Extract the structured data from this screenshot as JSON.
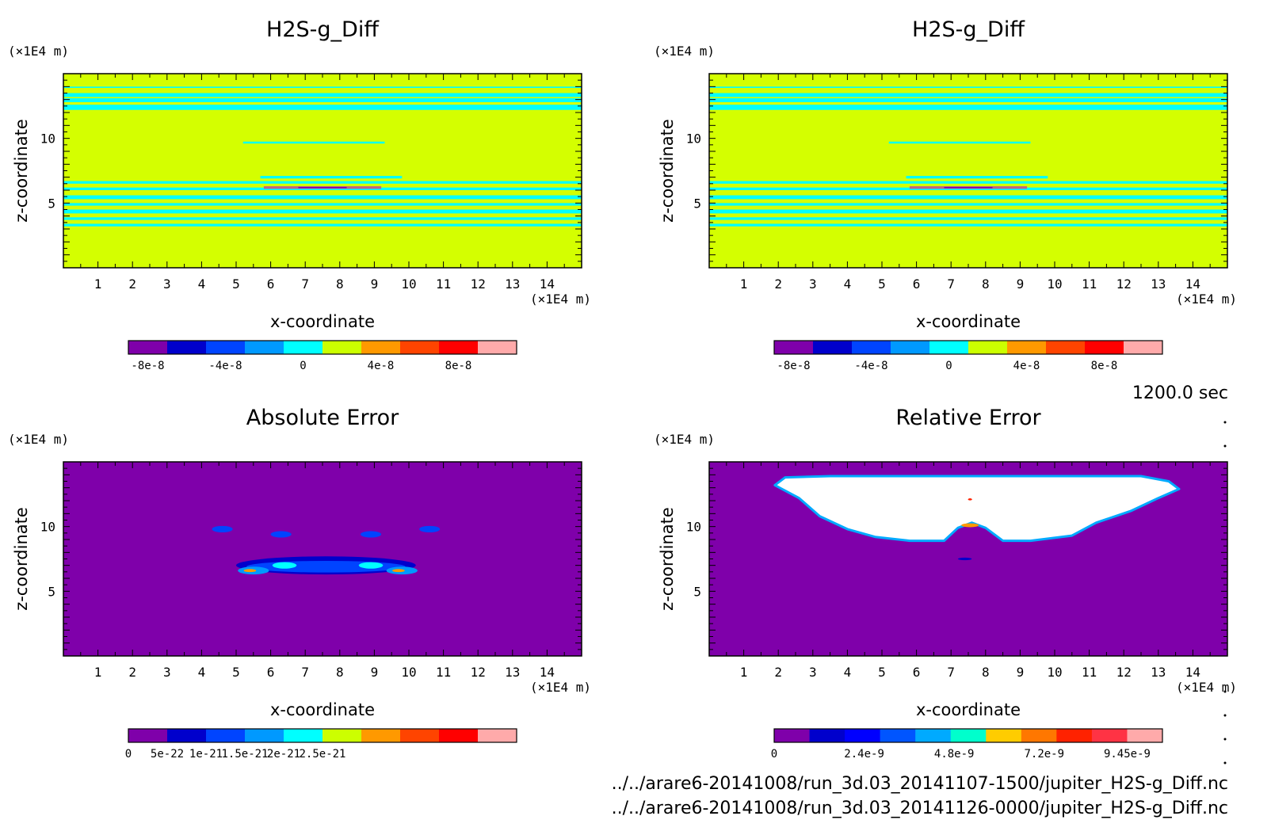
{
  "chart_data": [
    {
      "type": "heatmap",
      "title": "H2S-g_Diff",
      "xlabel": "x-coordinate",
      "ylabel": "z-coordinate",
      "x_unit": "(×1E4 m)",
      "y_unit": "(×1E4 m)",
      "xlim": [
        0,
        15
      ],
      "ylim": [
        0,
        15
      ],
      "x_ticks": [
        "1",
        "2",
        "3",
        "4",
        "5",
        "6",
        "7",
        "8",
        "9",
        "10",
        "11",
        "12",
        "13",
        "14"
      ],
      "y_ticks": [
        "5",
        "10"
      ],
      "background": "#d4ff00",
      "colorbar": {
        "colors": [
          "#7f00aa",
          "#0000cc",
          "#0044ff",
          "#0099ff",
          "#00ffff",
          "#ccff00",
          "#ff9900",
          "#ff4400",
          "#ff0000",
          "#ffaaaa"
        ],
        "labels": [
          "-8e-8",
          "-4e-8",
          "0",
          "4e-8",
          "8e-8"
        ],
        "label_at": [
          0.5,
          2.5,
          4.5,
          6.5,
          8.5
        ]
      },
      "features": [
        {
          "shape": "band",
          "z": [
            13.9,
            14.0
          ],
          "x": [
            0,
            15
          ],
          "color": "#00ffff"
        },
        {
          "shape": "band",
          "z": [
            13.2,
            13.5
          ],
          "x": [
            0,
            15
          ],
          "color": "#00ffff"
        },
        {
          "shape": "band",
          "z": [
            12.8,
            13.1
          ],
          "x": [
            0,
            15
          ],
          "color": "#00ffff"
        },
        {
          "shape": "band",
          "z": [
            12.2,
            12.6
          ],
          "x": [
            0,
            15
          ],
          "color": "#00ffff"
        },
        {
          "shape": "band",
          "z": [
            9.6,
            9.75
          ],
          "x": [
            5.2,
            9.3
          ],
          "color": "#00ffff"
        },
        {
          "shape": "band",
          "z": [
            6.9,
            7.1
          ],
          "x": [
            5.7,
            9.8
          ],
          "color": "#00ffff"
        },
        {
          "shape": "band",
          "z": [
            6.5,
            6.7
          ],
          "x": [
            0,
            15
          ],
          "color": "#00ffff"
        },
        {
          "shape": "band",
          "z": [
            6.0,
            6.2
          ],
          "x": [
            0,
            15
          ],
          "color": "#00ffff"
        },
        {
          "shape": "band",
          "z": [
            5.3,
            5.6
          ],
          "x": [
            0,
            15
          ],
          "color": "#00ffff"
        },
        {
          "shape": "band",
          "z": [
            4.8,
            5.0
          ],
          "x": [
            0,
            15
          ],
          "color": "#00ffff"
        },
        {
          "shape": "band",
          "z": [
            4.2,
            4.5
          ],
          "x": [
            0,
            15
          ],
          "color": "#00ffff"
        },
        {
          "shape": "band",
          "z": [
            3.7,
            3.9
          ],
          "x": [
            0,
            15
          ],
          "color": "#00ffff"
        },
        {
          "shape": "band",
          "z": [
            3.2,
            3.4
          ],
          "x": [
            0,
            15
          ],
          "color": "#00ffff"
        },
        {
          "shape": "band",
          "z": [
            6.1,
            6.3
          ],
          "x": [
            5.8,
            9.2
          ],
          "color": "#bb6688"
        },
        {
          "shape": "band",
          "z": [
            6.15,
            6.25
          ],
          "x": [
            6.8,
            8.2
          ],
          "color": "#7f00aa"
        }
      ]
    },
    {
      "type": "heatmap",
      "title": "H2S-g_Diff",
      "xlabel": "x-coordinate",
      "ylabel": "z-coordinate",
      "x_unit": "(×1E4 m)",
      "y_unit": "(×1E4 m)",
      "xlim": [
        0,
        15
      ],
      "ylim": [
        0,
        15
      ],
      "x_ticks": [
        "1",
        "2",
        "3",
        "4",
        "5",
        "6",
        "7",
        "8",
        "9",
        "10",
        "11",
        "12",
        "13",
        "14"
      ],
      "y_ticks": [
        "5",
        "10"
      ],
      "background": "#d4ff00",
      "colorbar": {
        "colors": [
          "#7f00aa",
          "#0000cc",
          "#0044ff",
          "#0099ff",
          "#00ffff",
          "#ccff00",
          "#ff9900",
          "#ff4400",
          "#ff0000",
          "#ffaaaa"
        ],
        "labels": [
          "-8e-8",
          "-4e-8",
          "0",
          "4e-8",
          "8e-8"
        ],
        "label_at": [
          0.5,
          2.5,
          4.5,
          6.5,
          8.5
        ]
      },
      "features": [
        {
          "shape": "band",
          "z": [
            13.9,
            14.0
          ],
          "x": [
            0,
            15
          ],
          "color": "#00ffff"
        },
        {
          "shape": "band",
          "z": [
            13.2,
            13.5
          ],
          "x": [
            0,
            15
          ],
          "color": "#00ffff"
        },
        {
          "shape": "band",
          "z": [
            12.8,
            13.1
          ],
          "x": [
            0,
            15
          ],
          "color": "#00ffff"
        },
        {
          "shape": "band",
          "z": [
            12.2,
            12.6
          ],
          "x": [
            0,
            15
          ],
          "color": "#00ffff"
        },
        {
          "shape": "band",
          "z": [
            9.6,
            9.75
          ],
          "x": [
            5.2,
            9.3
          ],
          "color": "#00ffff"
        },
        {
          "shape": "band",
          "z": [
            6.9,
            7.1
          ],
          "x": [
            5.7,
            9.8
          ],
          "color": "#00ffff"
        },
        {
          "shape": "band",
          "z": [
            6.5,
            6.7
          ],
          "x": [
            0,
            15
          ],
          "color": "#00ffff"
        },
        {
          "shape": "band",
          "z": [
            6.0,
            6.2
          ],
          "x": [
            0,
            15
          ],
          "color": "#00ffff"
        },
        {
          "shape": "band",
          "z": [
            5.3,
            5.6
          ],
          "x": [
            0,
            15
          ],
          "color": "#00ffff"
        },
        {
          "shape": "band",
          "z": [
            4.8,
            5.0
          ],
          "x": [
            0,
            15
          ],
          "color": "#00ffff"
        },
        {
          "shape": "band",
          "z": [
            4.2,
            4.5
          ],
          "x": [
            0,
            15
          ],
          "color": "#00ffff"
        },
        {
          "shape": "band",
          "z": [
            3.7,
            3.9
          ],
          "x": [
            0,
            15
          ],
          "color": "#00ffff"
        },
        {
          "shape": "band",
          "z": [
            3.2,
            3.4
          ],
          "x": [
            0,
            15
          ],
          "color": "#00ffff"
        },
        {
          "shape": "band",
          "z": [
            6.1,
            6.3
          ],
          "x": [
            5.8,
            9.2
          ],
          "color": "#bb6688"
        },
        {
          "shape": "band",
          "z": [
            6.15,
            6.25
          ],
          "x": [
            6.8,
            8.2
          ],
          "color": "#7f00aa"
        }
      ]
    },
    {
      "type": "heatmap",
      "title": "Absolute Error",
      "xlabel": "x-coordinate",
      "ylabel": "z-coordinate",
      "x_unit": "(×1E4 m)",
      "y_unit": "(×1E4 m)",
      "xlim": [
        0,
        15
      ],
      "ylim": [
        0,
        15
      ],
      "x_ticks": [
        "1",
        "2",
        "3",
        "4",
        "5",
        "6",
        "7",
        "8",
        "9",
        "10",
        "11",
        "12",
        "13",
        "14"
      ],
      "y_ticks": [
        "5",
        "10"
      ],
      "background": "#7f00aa",
      "colorbar": {
        "colors": [
          "#7f00aa",
          "#0000cc",
          "#0044ff",
          "#0099ff",
          "#00ffff",
          "#ccff00",
          "#ff9900",
          "#ff4400",
          "#ff0000",
          "#ffaaaa"
        ],
        "labels": [
          "0",
          "5e-22",
          "1e-21",
          "1.5e-21",
          "2e-21",
          "2.5e-21"
        ],
        "label_at": [
          0,
          1,
          2,
          3,
          4,
          5
        ]
      },
      "features": [
        {
          "shape": "blob",
          "cx": 4.6,
          "cz": 9.8,
          "rx": 0.3,
          "rz": 0.25,
          "color": "#0044ff"
        },
        {
          "shape": "blob",
          "cx": 6.3,
          "cz": 9.4,
          "rx": 0.3,
          "rz": 0.25,
          "color": "#0044ff"
        },
        {
          "shape": "blob",
          "cx": 8.9,
          "cz": 9.4,
          "rx": 0.3,
          "rz": 0.25,
          "color": "#0044ff"
        },
        {
          "shape": "blob",
          "cx": 10.6,
          "cz": 9.8,
          "rx": 0.3,
          "rz": 0.25,
          "color": "#0044ff"
        },
        {
          "shape": "blob",
          "cx": 7.6,
          "cz": 7.0,
          "rx": 2.6,
          "rz": 0.7,
          "color": "#0000cc"
        },
        {
          "shape": "blob",
          "cx": 7.6,
          "cz": 6.9,
          "rx": 2.3,
          "rz": 0.45,
          "color": "#0044ff"
        },
        {
          "shape": "blob",
          "cx": 5.5,
          "cz": 6.6,
          "rx": 0.45,
          "rz": 0.3,
          "color": "#0099ff"
        },
        {
          "shape": "blob",
          "cx": 9.8,
          "cz": 6.6,
          "rx": 0.45,
          "rz": 0.3,
          "color": "#0099ff"
        },
        {
          "shape": "blob",
          "cx": 6.4,
          "cz": 7.0,
          "rx": 0.35,
          "rz": 0.25,
          "color": "#00ffff"
        },
        {
          "shape": "blob",
          "cx": 8.9,
          "cz": 7.0,
          "rx": 0.35,
          "rz": 0.25,
          "color": "#00ffff"
        },
        {
          "shape": "blob",
          "cx": 5.4,
          "cz": 6.6,
          "rx": 0.18,
          "rz": 0.12,
          "color": "#ff9900"
        },
        {
          "shape": "blob",
          "cx": 9.7,
          "cz": 6.6,
          "rx": 0.18,
          "rz": 0.12,
          "color": "#ff9900"
        }
      ]
    },
    {
      "type": "heatmap",
      "title": "Relative Error",
      "xlabel": "x-coordinate",
      "ylabel": "z-coordinate",
      "x_unit": "(×1E4 m)",
      "y_unit": "(×1E4 m)",
      "xlim": [
        0,
        15
      ],
      "ylim": [
        0,
        15
      ],
      "x_ticks": [
        "1",
        "2",
        "3",
        "4",
        "5",
        "6",
        "7",
        "8",
        "9",
        "10",
        "11",
        "12",
        "13",
        "14"
      ],
      "y_ticks": [
        "5",
        "10"
      ],
      "background": "#7f00aa",
      "colorbar": {
        "colors": [
          "#7f00aa",
          "#0000cc",
          "#0000ff",
          "#0055ff",
          "#00aaff",
          "#00ffcc",
          "#ffcc00",
          "#ff7700",
          "#ff2200",
          "#ff3344",
          "#ffaaaa"
        ],
        "labels": [
          "0",
          "2.4e-9",
          "4.8e-9",
          "7.2e-9",
          "9.45e-9"
        ],
        "label_at": [
          0,
          2.55,
          5.1,
          7.65,
          10.0
        ]
      },
      "features": [
        {
          "shape": "region",
          "points": [
            [
              1.9,
              13.2
            ],
            [
              2.2,
              13.8
            ],
            [
              3.5,
              13.9
            ],
            [
              5.0,
              13.9
            ],
            [
              7.0,
              13.9
            ],
            [
              9.0,
              13.9
            ],
            [
              11.0,
              13.9
            ],
            [
              12.5,
              13.9
            ],
            [
              13.3,
              13.5
            ],
            [
              13.6,
              12.9
            ],
            [
              13.0,
              12.2
            ],
            [
              12.2,
              11.2
            ],
            [
              11.2,
              10.3
            ],
            [
              10.5,
              9.3
            ],
            [
              9.3,
              8.9
            ],
            [
              8.5,
              8.9
            ],
            [
              8.0,
              9.9
            ],
            [
              7.6,
              10.3
            ],
            [
              7.2,
              9.9
            ],
            [
              6.8,
              8.9
            ],
            [
              5.8,
              8.9
            ],
            [
              4.8,
              9.2
            ],
            [
              4.0,
              9.8
            ],
            [
              3.2,
              10.8
            ],
            [
              2.6,
              12.2
            ]
          ],
          "color": "#ffffff",
          "edge": "#00aaff"
        },
        {
          "shape": "blob",
          "cx": 7.55,
          "cz": 10.1,
          "rx": 0.25,
          "rz": 0.15,
          "color": "#ff9900"
        },
        {
          "shape": "blob",
          "cx": 7.55,
          "cz": 12.1,
          "rx": 0.06,
          "rz": 0.08,
          "color": "#ff2200"
        },
        {
          "shape": "blob",
          "cx": 7.4,
          "cz": 7.5,
          "rx": 0.2,
          "rz": 0.1,
          "color": "#0000cc"
        }
      ]
    }
  ],
  "time_label": "1200.0 sec",
  "files": [
    "../../arare6-20141008/run_3d.03_20141107-1500/jupiter_H2S-g_Diff.nc",
    "../../arare6-20141008/run_3d.03_20141126-0000/jupiter_H2S-g_Diff.nc"
  ]
}
